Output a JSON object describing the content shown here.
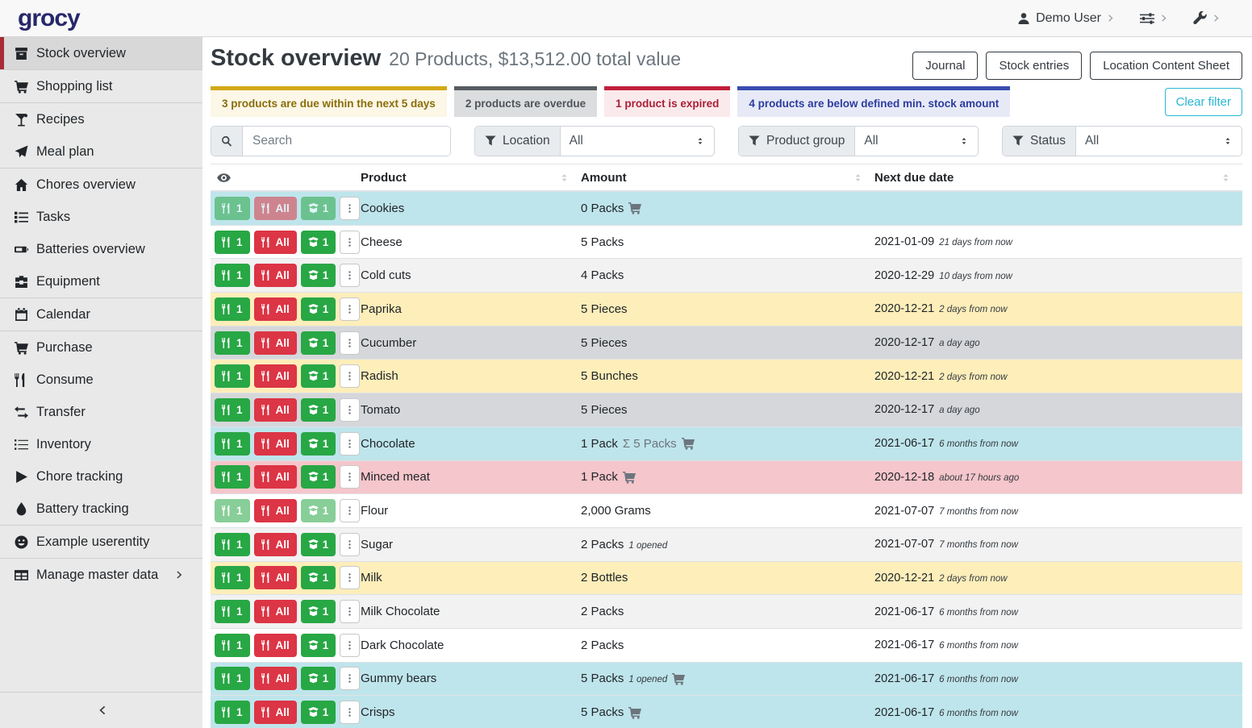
{
  "topbar": {
    "logo": "grocy",
    "user_label": "Demo User"
  },
  "sidebar": {
    "items": [
      {
        "label": "Stock overview",
        "icon": "box",
        "active": true,
        "divider_after": true
      },
      {
        "label": "Shopping list",
        "icon": "cart",
        "active": false,
        "divider_after": true
      },
      {
        "label": "Recipes",
        "icon": "cocktail",
        "active": false,
        "divider_after": false
      },
      {
        "label": "Meal plan",
        "icon": "plane",
        "active": false,
        "divider_after": true
      },
      {
        "label": "Chores overview",
        "icon": "home",
        "active": false,
        "divider_after": false
      },
      {
        "label": "Tasks",
        "icon": "tasks",
        "active": false,
        "divider_after": false
      },
      {
        "label": "Batteries overview",
        "icon": "battery",
        "active": false,
        "divider_after": false
      },
      {
        "label": "Equipment",
        "icon": "toolbox",
        "active": false,
        "divider_after": true
      },
      {
        "label": "Calendar",
        "icon": "calendar",
        "active": false,
        "divider_after": true
      },
      {
        "label": "Purchase",
        "icon": "cart",
        "active": false,
        "divider_after": false
      },
      {
        "label": "Consume",
        "icon": "utensils",
        "active": false,
        "divider_after": false
      },
      {
        "label": "Transfer",
        "icon": "exchange",
        "active": false,
        "divider_after": false
      },
      {
        "label": "Inventory",
        "icon": "list",
        "active": false,
        "divider_after": false
      },
      {
        "label": "Chore tracking",
        "icon": "play",
        "active": false,
        "divider_after": false
      },
      {
        "label": "Battery tracking",
        "icon": "droplet",
        "active": false,
        "divider_after": true
      },
      {
        "label": "Example userentity",
        "icon": "smile",
        "active": false,
        "divider_after": true
      },
      {
        "label": "Manage master data",
        "icon": "table",
        "active": false,
        "divider_after": false,
        "chevron": true
      }
    ]
  },
  "header": {
    "title": "Stock overview",
    "subtitle": "20 Products, $13,512.00 total value",
    "buttons": [
      "Journal",
      "Stock entries",
      "Location Content Sheet"
    ]
  },
  "banners": [
    {
      "text": "3 products are due within the next 5 days",
      "type": "warning"
    },
    {
      "text": "2 products are overdue",
      "type": "secondary"
    },
    {
      "text": "1 product is expired",
      "type": "danger"
    },
    {
      "text": "4 products are below defined min. stock amount",
      "type": "info"
    }
  ],
  "clear_filter_label": "Clear filter",
  "filters": {
    "search_placeholder": "Search",
    "location": {
      "label": "Location",
      "value": "All"
    },
    "product_group": {
      "label": "Product group",
      "value": "All"
    },
    "status": {
      "label": "Status",
      "value": "All"
    }
  },
  "table": {
    "columns": {
      "product": "Product",
      "amount": "Amount",
      "due": "Next due date"
    },
    "buttons": {
      "consume_one": "1",
      "consume_all": "All",
      "open_one": "1"
    },
    "sum_prefix": "Σ",
    "rows": [
      {
        "product": "Cookies",
        "amount": "0 Packs",
        "sum": "",
        "opened": "",
        "cart": true,
        "date": "",
        "date_rel": "",
        "status": "info",
        "disabled": "all"
      },
      {
        "product": "Cheese",
        "amount": "5 Packs",
        "sum": "",
        "opened": "",
        "cart": false,
        "date": "2021-01-09",
        "date_rel": "21 days from now",
        "status": "plain",
        "disabled": ""
      },
      {
        "product": "Cold cuts",
        "amount": "4 Packs",
        "sum": "",
        "opened": "",
        "cart": false,
        "date": "2020-12-29",
        "date_rel": "10 days from now",
        "status": "striped",
        "disabled": ""
      },
      {
        "product": "Paprika",
        "amount": "5 Pieces",
        "sum": "",
        "opened": "",
        "cart": false,
        "date": "2020-12-21",
        "date_rel": "2 days from now",
        "status": "warning",
        "disabled": ""
      },
      {
        "product": "Cucumber",
        "amount": "5 Pieces",
        "sum": "",
        "opened": "",
        "cart": false,
        "date": "2020-12-17",
        "date_rel": "a day ago",
        "status": "secondary",
        "disabled": ""
      },
      {
        "product": "Radish",
        "amount": "5 Bunches",
        "sum": "",
        "opened": "",
        "cart": false,
        "date": "2020-12-21",
        "date_rel": "2 days from now",
        "status": "warning",
        "disabled": ""
      },
      {
        "product": "Tomato",
        "amount": "5 Pieces",
        "sum": "",
        "opened": "",
        "cart": false,
        "date": "2020-12-17",
        "date_rel": "a day ago",
        "status": "secondary",
        "disabled": ""
      },
      {
        "product": "Chocolate",
        "amount": "1 Pack",
        "sum": "5 Packs",
        "opened": "",
        "cart": true,
        "date": "2021-06-17",
        "date_rel": "6 months from now",
        "status": "info",
        "disabled": ""
      },
      {
        "product": "Minced meat",
        "amount": "1 Pack",
        "sum": "",
        "opened": "",
        "cart": true,
        "date": "2020-12-18",
        "date_rel": "about 17 hours ago",
        "status": "danger",
        "disabled": ""
      },
      {
        "product": "Flour",
        "amount": "2,000 Grams",
        "sum": "",
        "opened": "",
        "cart": false,
        "date": "2021-07-07",
        "date_rel": "7 months from now",
        "status": "plain",
        "disabled": "partial"
      },
      {
        "product": "Sugar",
        "amount": "2 Packs",
        "sum": "",
        "opened": "1 opened",
        "cart": false,
        "date": "2021-07-07",
        "date_rel": "7 months from now",
        "status": "striped",
        "disabled": ""
      },
      {
        "product": "Milk",
        "amount": "2 Bottles",
        "sum": "",
        "opened": "",
        "cart": false,
        "date": "2020-12-21",
        "date_rel": "2 days from now",
        "status": "warning",
        "disabled": ""
      },
      {
        "product": "Milk Chocolate",
        "amount": "2 Packs",
        "sum": "",
        "opened": "",
        "cart": false,
        "date": "2021-06-17",
        "date_rel": "6 months from now",
        "status": "striped",
        "disabled": ""
      },
      {
        "product": "Dark Chocolate",
        "amount": "2 Packs",
        "sum": "",
        "opened": "",
        "cart": false,
        "date": "2021-06-17",
        "date_rel": "6 months from now",
        "status": "plain",
        "disabled": ""
      },
      {
        "product": "Gummy bears",
        "amount": "5 Packs",
        "sum": "",
        "opened": "1 opened",
        "cart": true,
        "date": "2021-06-17",
        "date_rel": "6 months from now",
        "status": "info",
        "disabled": ""
      },
      {
        "product": "Crisps",
        "amount": "5 Packs",
        "sum": "",
        "opened": "",
        "cart": true,
        "date": "2021-06-17",
        "date_rel": "6 months from now",
        "status": "info",
        "disabled": ""
      },
      {
        "product": "",
        "amount": "",
        "sum": "",
        "opened": "",
        "cart": false,
        "date": "",
        "date_rel": "",
        "status": "plain",
        "disabled": ""
      }
    ]
  },
  "colors": {
    "accent_red": "#a92a38",
    "logo": "#27276b",
    "btn_success": "#28a745",
    "btn_danger": "#dc3545",
    "row_info": "#bee5eb",
    "row_warning": "#fdeeba",
    "row_overdue": "#d5d7da",
    "row_expired": "#f5c6cb",
    "clear_filter": "#29b6d2"
  }
}
